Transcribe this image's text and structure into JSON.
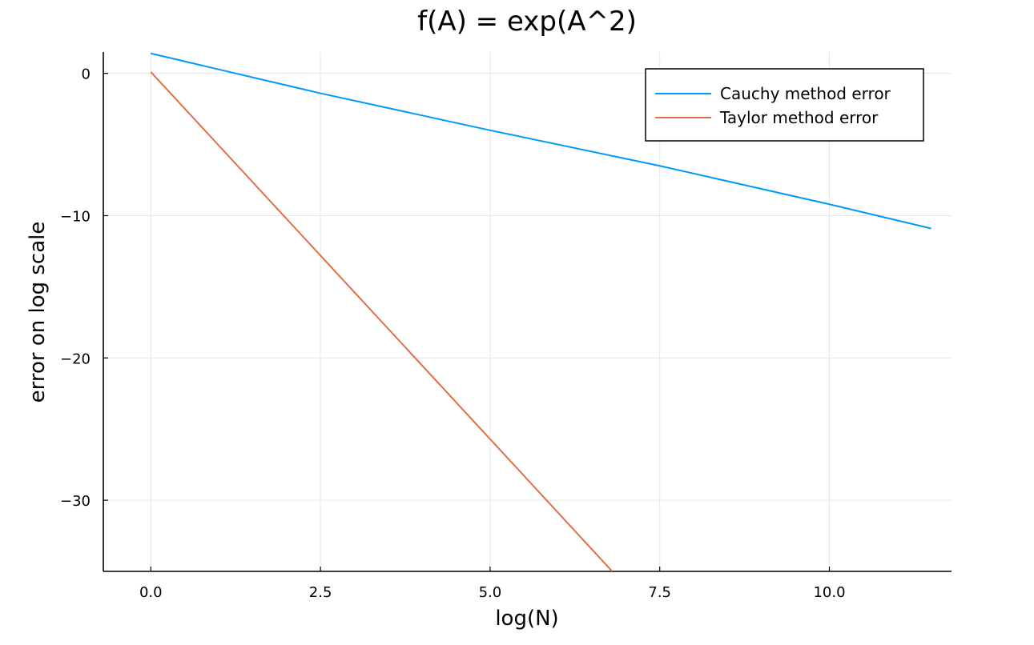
{
  "chart_data": {
    "type": "line",
    "title": "f(A) = exp(A^2)",
    "xlabel": "log(N)",
    "ylabel": "error on log scale",
    "xlim": [
      -0.7,
      11.8
    ],
    "ylim": [
      -35,
      1.5
    ],
    "xticks": [
      0.0,
      2.5,
      5.0,
      7.5,
      10.0
    ],
    "xtick_labels": [
      "0.0",
      "2.5",
      "5.0",
      "7.5",
      "10.0"
    ],
    "yticks": [
      0,
      -10,
      -20,
      -30
    ],
    "ytick_labels": [
      "0",
      "−10",
      "−20",
      "−30"
    ],
    "grid": true,
    "legend_position": "top-right",
    "series": [
      {
        "name": "Cauchy method error",
        "color": "#009af9",
        "x": [
          0.0,
          2.5,
          5.0,
          7.5,
          10.0,
          11.5
        ],
        "y": [
          1.4,
          -1.4,
          -4.0,
          -6.5,
          -9.2,
          -10.9
        ]
      },
      {
        "name": "Taylor method error",
        "color": "#e26f46",
        "x": [
          0.0,
          2.5,
          5.0,
          6.8
        ],
        "y": [
          0.1,
          -12.8,
          -25.7,
          -35.0
        ]
      }
    ]
  }
}
